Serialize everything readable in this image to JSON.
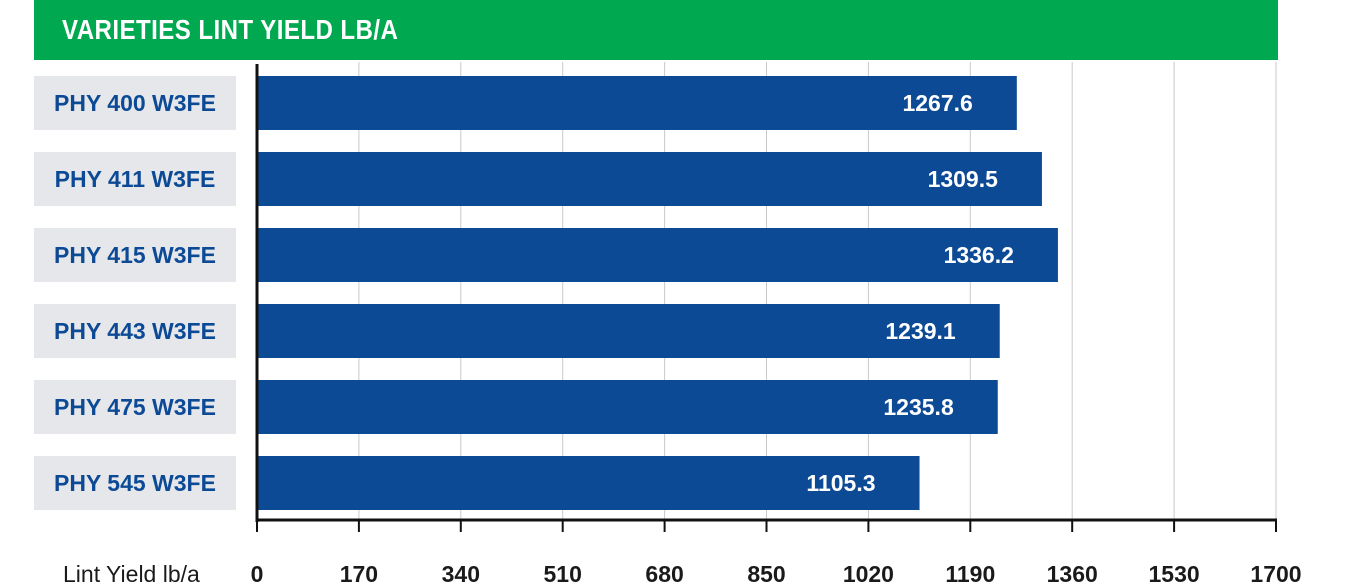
{
  "colors": {
    "title_bg": "#00a84f",
    "bar": "#0d4a96",
    "label_box": "#e6e7ea",
    "label_text": "#0d4a96",
    "grid": "#c9c9c9"
  },
  "chart_data": {
    "type": "bar",
    "orientation": "horizontal",
    "title": "VARIETIES LINT YIELD LB/A",
    "xlabel": "Lint Yield lb/a",
    "ylabel": "",
    "categories": [
      "PHY 400 W3FE",
      "PHY 411 W3FE",
      "PHY 415 W3FE",
      "PHY 443 W3FE",
      "PHY 475 W3FE",
      "PHY 545 W3FE"
    ],
    "values": [
      1267.6,
      1309.5,
      1336.2,
      1239.1,
      1235.8,
      1105.3
    ],
    "value_labels": [
      "1267.6",
      "1309.5",
      "1336.2",
      "1239.1",
      "1235.8",
      "1105.3"
    ],
    "xlim": [
      0,
      1700
    ],
    "xticks": [
      0,
      170,
      340,
      510,
      680,
      850,
      1020,
      1190,
      1360,
      1530,
      1700
    ],
    "grid": true,
    "legend": "none"
  }
}
